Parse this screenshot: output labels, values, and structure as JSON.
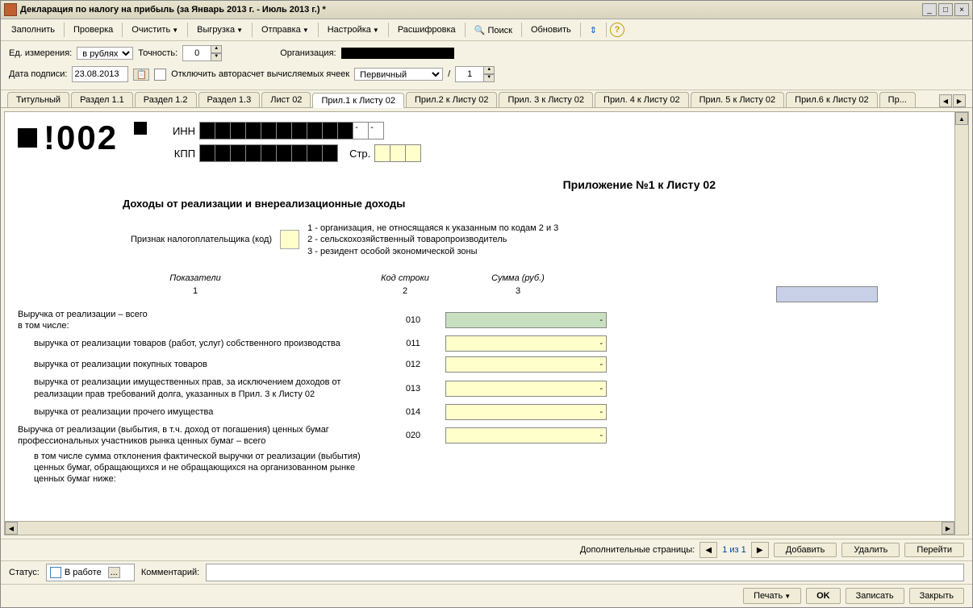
{
  "window": {
    "title": "Декларация по налогу на прибыль (за Январь 2013 г. - Июль 2013 г.) *"
  },
  "toolbar": {
    "fill": "Заполнить",
    "check": "Проверка",
    "clear": "Очистить",
    "export": "Выгрузка",
    "send": "Отправка",
    "settings": "Настройка",
    "decode": "Расшифровка",
    "search": "Поиск",
    "refresh": "Обновить"
  },
  "params": {
    "unit_label": "Ед. измерения:",
    "unit_value": "в рублях",
    "precision_label": "Точность:",
    "precision_value": "0",
    "org_label": "Организация:",
    "sign_date_label": "Дата подписи:",
    "sign_date_value": "23.08.2013",
    "disable_autocalc": "Отключить авторасчет вычисляемых ячеек",
    "doc_type": "Первичный",
    "slash": "/",
    "page_value": "1"
  },
  "tabs": [
    "Титульный",
    "Раздел 1.1",
    "Раздел 1.2",
    "Раздел 1.3",
    "Лист 02",
    "Прил.1 к Листу 02",
    "Прил.2 к Листу 02",
    "Прил. 3 к Листу 02",
    "Прил. 4 к Листу 02",
    "Прил. 5 к Листу 02",
    "Прил.6 к Листу 02",
    "Пр..."
  ],
  "active_tab": 5,
  "doc": {
    "code": "!002",
    "inn_label": "ИНН",
    "kpp_label": "КПП",
    "str_label": "Стр.",
    "title": "Приложение №1 к Листу 02",
    "subtitle": "Доходы от реализации и внереализационные доходы",
    "taxpayer_label": "Признак налогоплательщика (код)",
    "legend1": "1 - организация, не относящаяся к указанным по кодам 2 и 3",
    "legend2": "2 - сельскохозяйственный товаропроизводитель",
    "legend3": "3 - резидент особой экономической зоны",
    "col_indicators": "Показатели",
    "col_rowcode": "Код строки",
    "col_sum": "Сумма (руб.)",
    "colnum1": "1",
    "colnum2": "2",
    "colnum3": "3",
    "rows": [
      {
        "label": "Выручка от реализации – всего",
        "sublabel": "в том числе:",
        "code": "010",
        "green": true,
        "dash": "-",
        "indent": false
      },
      {
        "label": "выручка от реализации товаров (работ, услуг) собственного производства",
        "code": "011",
        "dash": "-",
        "indent": true
      },
      {
        "label": "выручка от реализации покупных товаров",
        "code": "012",
        "dash": "-",
        "indent": true
      },
      {
        "label": "выручка от реализации имущественных прав, за исключением доходов от реализации прав требований долга, указанных в Прил. 3 к Листу 02",
        "code": "013",
        "dash": "-",
        "indent": true
      },
      {
        "label": "выручка от реализации прочего имущества",
        "code": "014",
        "dash": "-",
        "indent": true
      },
      {
        "label": "Выручка от реализации (выбытия, в т.ч. доход от погашения) ценных бумаг профессиональных участников рынка ценных бумаг – всего",
        "code": "020",
        "dash": "-",
        "indent": false
      },
      {
        "label": "в том числе сумма отклонения фактической выручки от реализации (выбытия) ценных бумаг, обращающихся и не обращающихся на организованном рынке ценных бумаг ниже:",
        "code": "",
        "indent": true,
        "noval": true
      }
    ]
  },
  "pager": {
    "extra_pages_label": "Дополнительные страницы:",
    "page_text": "1 из 1",
    "add": "Добавить",
    "delete": "Удалить",
    "go": "Перейти"
  },
  "status": {
    "status_label": "Статус:",
    "status_value": "В работе",
    "comment_label": "Комментарий:"
  },
  "footer": {
    "print": "Печать",
    "ok": "OK",
    "save": "Записать",
    "close": "Закрыть"
  }
}
